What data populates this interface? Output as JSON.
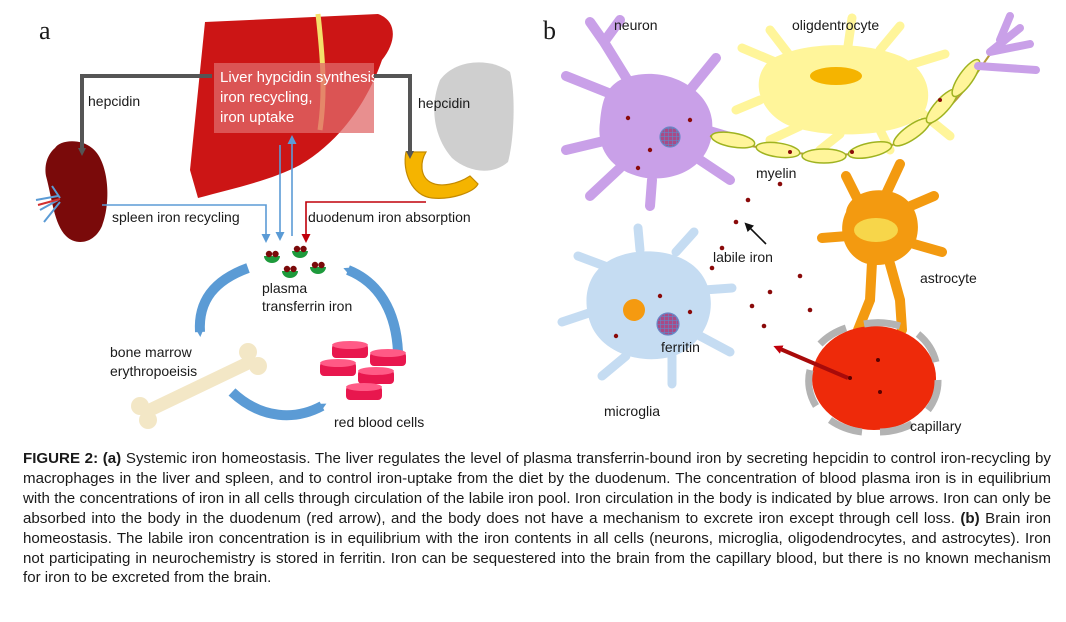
{
  "panel_a": {
    "letter": "a",
    "liver_lines": [
      "Liver hypcidin synthesis,",
      "iron recycling,",
      "iron uptake"
    ],
    "hepcidin_left": "hepcidin",
    "hepcidin_right": "hepcidin",
    "spleen_label": "spleen iron recycling",
    "duodenum_label": "duodenum iron absorption",
    "plasma_lines": [
      "plasma",
      "transferrin iron"
    ],
    "bone_lines": [
      "bone marrow",
      "erythropoeisis"
    ],
    "rbc_label": "red blood cells"
  },
  "panel_b": {
    "letter": "b",
    "neuron": "neuron",
    "oligo": "oligdentrocyte",
    "myelin": "myelin",
    "labile": "labile iron",
    "astrocyte": "astrocyte",
    "microglia": "microglia",
    "ferritin": "ferritin",
    "capillary": "capillary"
  },
  "caption": {
    "lead": "FIGURE 2: ",
    "a_tag": "(a)",
    "a_text": " Systemic iron homeostasis. The liver regulates the level of plasma transferrin-bound iron by secreting hepcidin to control iron-recycling by macrophages in the liver and spleen, and to control iron-uptake from the diet by the duodenum. The concentration of blood plasma iron is in equilibrium with the concentrations of iron in all cells through circulation of the labile iron pool. Iron circulation in the body is indicated by blue arrows. Iron can only be absorbed into the body in the duodenum (red arrow), and the body does not have a mechanism to excrete iron except through cell loss. ",
    "b_tag": "(b)",
    "b_text": " Brain iron homeostasis. The labile iron concentration is in equilibrium with the iron contents in all cells (neurons, microglia, oligodendrocytes, and astrocytes). Iron not participating in neurochemistry is stored in ferritin. Iron can be sequestered into the brain from the capillary blood, but there is no known mechanism for iron to be excreted from the brain."
  },
  "colors": {
    "liver": "#cc1515",
    "spleen": "#7a0a0a",
    "duodenum": "#f5b400",
    "stomach": "#cfcfcf",
    "blue_arrow": "#5b9bd5",
    "red_arrow": "#c0000a",
    "neuron": "#c9a0e8",
    "oligo": "#fff59a",
    "astrocyte": "#f39a10",
    "microglia": "#c5dcf2",
    "capillary": "#ee2a0a"
  }
}
